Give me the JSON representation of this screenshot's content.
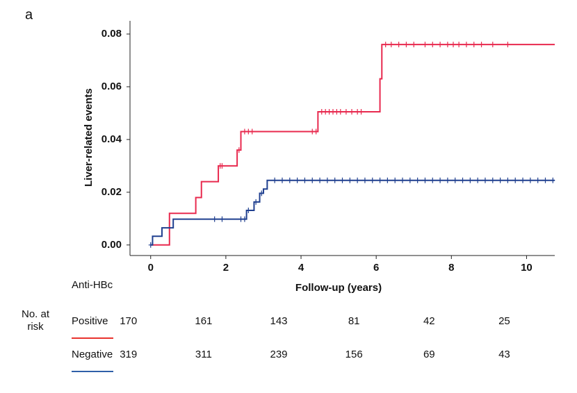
{
  "panel_label": "a",
  "chart_data": {
    "type": "step",
    "ylabel": "Liver-related events",
    "xlabel": "Follow-up (years)",
    "xlim": [
      -0.55,
      10.75
    ],
    "xticks": [
      0,
      2,
      4,
      6,
      8,
      10
    ],
    "ylim": [
      -0.004,
      0.085
    ],
    "yticks": [
      {
        "value": 0,
        "label": "0.00"
      },
      {
        "value": 0.02,
        "label": "0.02"
      },
      {
        "value": 0.04,
        "label": "0.04"
      },
      {
        "value": 0.06,
        "label": "0.06"
      },
      {
        "value": 0.08,
        "label": "0.08"
      }
    ],
    "legend_title": "Anti-HBc",
    "at_risk_label": "No. at risk",
    "series": [
      {
        "name": "Positive",
        "color": "#e8294e",
        "legend_color": "#e8332d",
        "x": [
          0,
          0.5,
          1.2,
          1.35,
          1.8,
          2.3,
          2.4,
          4.45,
          6.1,
          6.15,
          10.75
        ],
        "values": [
          0,
          0.012,
          0.018,
          0.024,
          0.03,
          0.036,
          0.043,
          0.0505,
          0.063,
          0.076,
          0.076
        ],
        "censored": [
          1.85,
          1.9,
          2.35,
          2.5,
          2.6,
          2.7,
          4.3,
          4.4,
          4.55,
          4.65,
          4.75,
          4.85,
          4.95,
          5.05,
          5.2,
          5.35,
          5.5,
          5.6,
          6.25,
          6.4,
          6.6,
          6.8,
          7.0,
          7.3,
          7.5,
          7.7,
          7.9,
          8.05,
          8.2,
          8.4,
          8.6,
          8.8,
          9.1,
          9.5
        ],
        "at_risk": [
          170,
          161,
          143,
          81,
          42,
          25
        ]
      },
      {
        "name": "Negative",
        "color": "#1f3f8f",
        "legend_color": "#2f5fa8",
        "x": [
          0,
          0.05,
          0.3,
          0.6,
          2.55,
          2.75,
          2.9,
          3.0,
          3.1,
          10.75
        ],
        "values": [
          0,
          0.0033,
          0.0065,
          0.0098,
          0.0131,
          0.0163,
          0.0196,
          0.0212,
          0.0245,
          0.0245
        ],
        "censored": [
          0,
          1.7,
          1.9,
          2.4,
          2.5,
          2.6,
          2.8,
          2.95,
          3.3,
          3.5,
          3.7,
          3.9,
          4.1,
          4.3,
          4.5,
          4.7,
          4.9,
          5.1,
          5.3,
          5.5,
          5.7,
          5.9,
          6.1,
          6.3,
          6.5,
          6.7,
          6.9,
          7.1,
          7.3,
          7.5,
          7.7,
          7.9,
          8.1,
          8.3,
          8.5,
          8.7,
          8.9,
          9.1,
          9.3,
          9.5,
          9.7,
          9.9,
          10.1,
          10.3,
          10.5,
          10.7
        ],
        "at_risk": [
          319,
          311,
          239,
          156,
          69,
          43
        ]
      }
    ]
  }
}
